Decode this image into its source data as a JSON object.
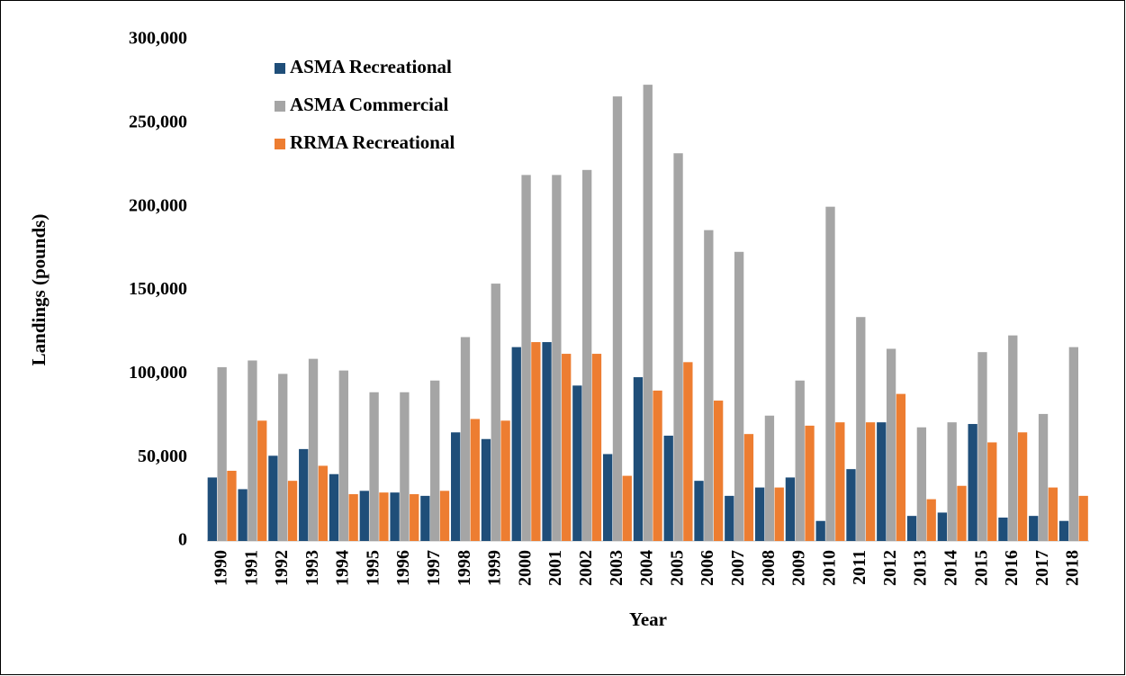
{
  "chart_data": {
    "type": "bar",
    "x_label": "Year",
    "y_label": "Landings  (pounds)",
    "categories": [
      "1990",
      "1991",
      "1992",
      "1993",
      "1994",
      "1995",
      "1996",
      "1997",
      "1998",
      "1999",
      "2000",
      "2001",
      "2002",
      "2003",
      "2004",
      "2005",
      "2006",
      "2007",
      "2008",
      "2009",
      "2010",
      "2011",
      "2012",
      "2013",
      "2014",
      "2015",
      "2016",
      "2017",
      "2018"
    ],
    "series": [
      {
        "name": "ASMA Recreational",
        "color": "#1f4e79",
        "values": [
          38000,
          31000,
          51000,
          55000,
          40000,
          30000,
          29000,
          27000,
          65000,
          61000,
          116000,
          119000,
          93000,
          52000,
          98000,
          63000,
          36000,
          27000,
          32000,
          38000,
          12000,
          43000,
          71000,
          15000,
          17000,
          70000,
          14000,
          15000,
          12000
        ]
      },
      {
        "name": "ASMA Commercial",
        "color": "#a5a5a5",
        "values": [
          104000,
          108000,
          100000,
          109000,
          102000,
          89000,
          89000,
          96000,
          122000,
          154000,
          219000,
          219000,
          222000,
          266000,
          273000,
          232000,
          186000,
          173000,
          75000,
          96000,
          200000,
          134000,
          115000,
          68000,
          71000,
          113000,
          123000,
          76000,
          116000
        ]
      },
      {
        "name": "RRMA Recreational",
        "color": "#ed7d31",
        "values": [
          42000,
          72000,
          36000,
          45000,
          28000,
          29000,
          28000,
          30000,
          73000,
          72000,
          119000,
          112000,
          112000,
          39000,
          90000,
          107000,
          84000,
          64000,
          32000,
          69000,
          71000,
          71000,
          88000,
          25000,
          33000,
          59000,
          65000,
          32000,
          27000
        ]
      }
    ],
    "ylim": [
      0,
      300000
    ],
    "yticks": [
      0,
      {
        "value": 50000,
        "label": "50,000"
      },
      {
        "value": 100000,
        "label": "100,000"
      },
      {
        "value": 150000,
        "label": "150,000"
      },
      {
        "value": 200000,
        "label": "200,000"
      },
      {
        "value": 250000,
        "label": "250,000"
      },
      {
        "value": 300000,
        "label": "300,000"
      }
    ],
    "legend_position": "upper left"
  }
}
